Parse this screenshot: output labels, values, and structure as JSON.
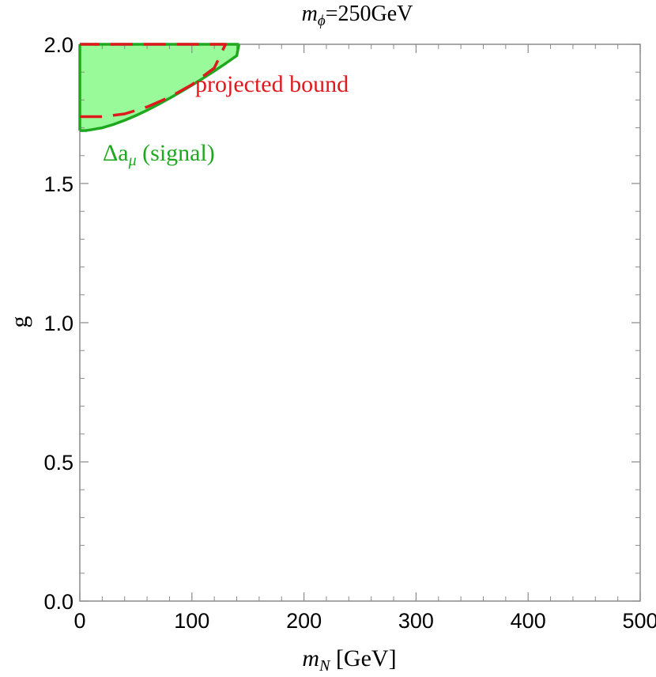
{
  "chart_data": {
    "type": "area",
    "title": {
      "main": "m",
      "sub": "ϕ",
      "rest": "=250GeV"
    },
    "xlabel": {
      "main": "m",
      "sub": "N",
      "rest": " [GeV]"
    },
    "ylabel": "g",
    "xlim": [
      0,
      500
    ],
    "ylim": [
      0,
      2
    ],
    "xticks": [
      0,
      100,
      200,
      300,
      400,
      500
    ],
    "xtick_labels": [
      "0",
      "100",
      "200",
      "300",
      "400",
      "500"
    ],
    "yticks": [
      0,
      0.5,
      1,
      1.5,
      2
    ],
    "ytick_labels": [
      "0.0",
      "0.5",
      "1.0",
      "1.5",
      "2.0"
    ],
    "grid": false,
    "series": [
      {
        "name": "Δa_μ (signal)",
        "style": "filled-solid",
        "color": "#1fa81f",
        "fill": "#98fa98",
        "x": [
          0,
          5,
          10,
          20,
          30,
          40,
          50,
          60,
          70,
          80,
          90,
          100,
          110,
          120,
          130,
          140,
          142
        ],
        "y": [
          1.69,
          1.69,
          1.693,
          1.7,
          1.712,
          1.727,
          1.744,
          1.763,
          1.784,
          1.806,
          1.829,
          1.853,
          1.878,
          1.904,
          1.931,
          1.959,
          2.0
        ]
      },
      {
        "name": "projected bound",
        "style": "dashed",
        "color": "#e0191e",
        "x": [
          0,
          20,
          40,
          60,
          80,
          100,
          120,
          130,
          0
        ],
        "y": [
          1.74,
          1.74,
          1.75,
          1.775,
          1.81,
          1.855,
          1.915,
          2.0,
          2.0
        ]
      }
    ],
    "annotations": [
      {
        "text": "projected bound",
        "x": 107,
        "y": 1.83,
        "color": "#e0191e"
      },
      {
        "text_main": "Δa",
        "text_sub": "μ",
        "text_rest": " (signal)",
        "x": 10,
        "y": 1.6,
        "color": "#1fa81f"
      }
    ]
  }
}
